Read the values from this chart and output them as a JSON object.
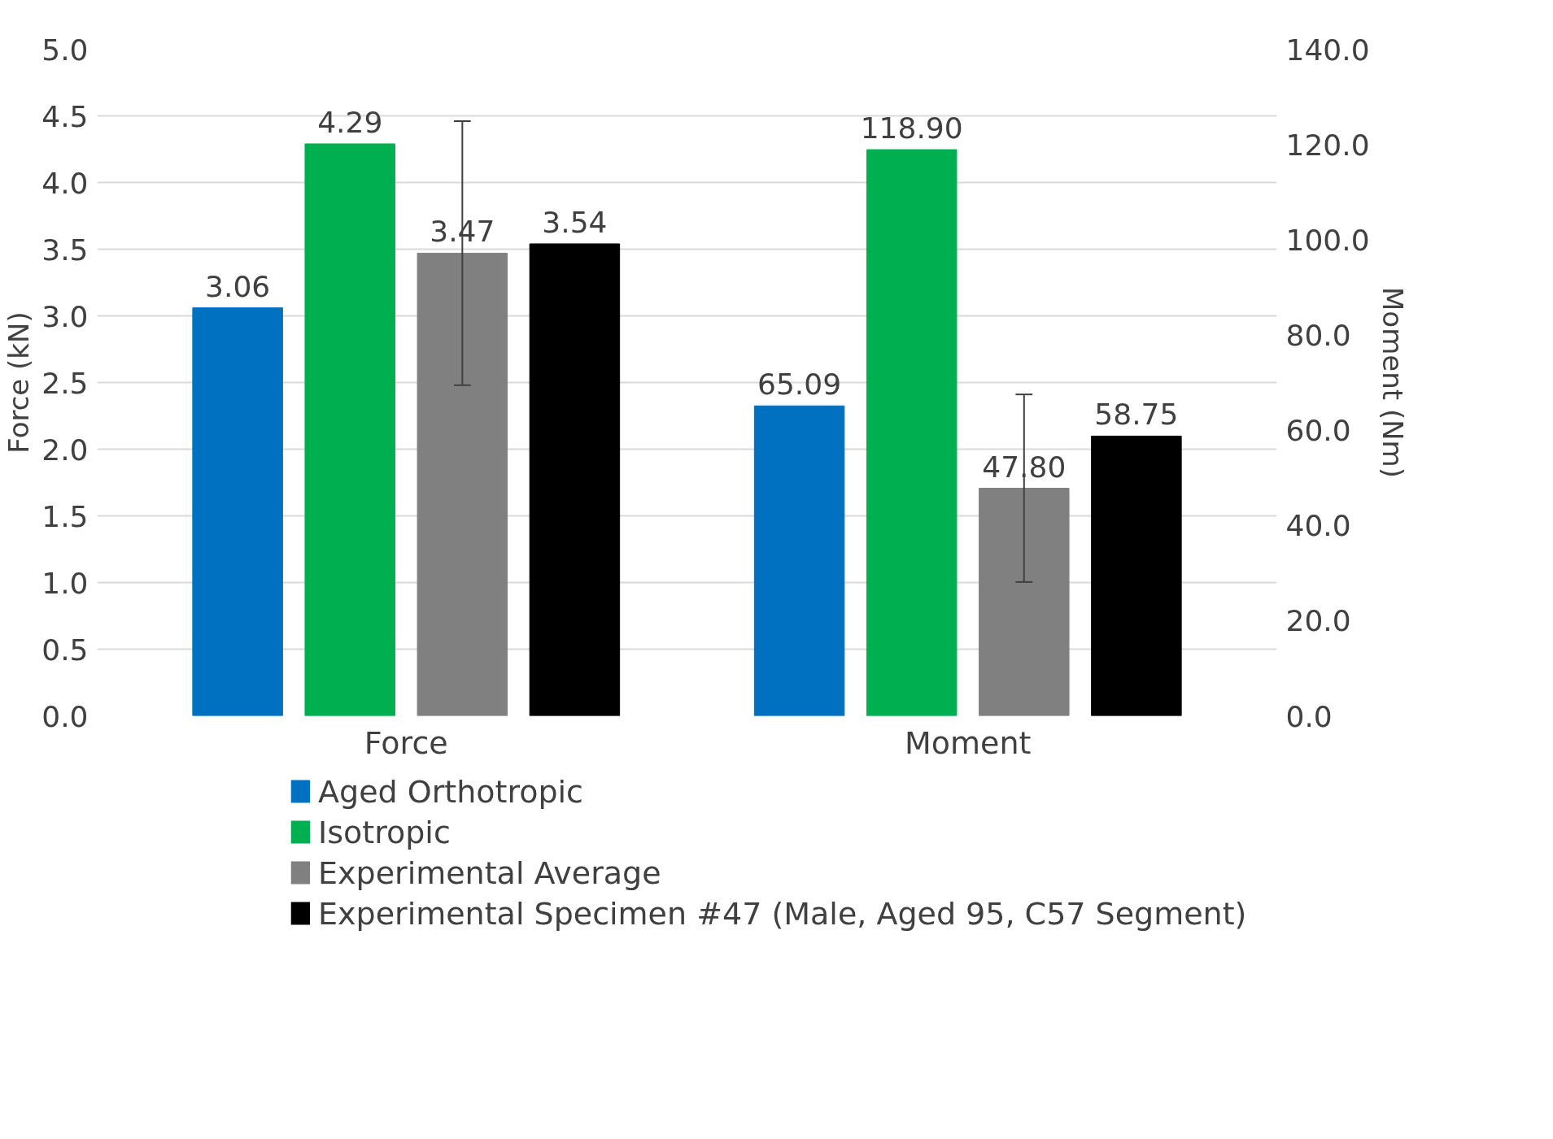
{
  "chart_data": {
    "type": "bar",
    "categories": [
      "Force",
      "Moment"
    ],
    "ylabel": "Force (kN)",
    "y2label": "Moment (Nm)",
    "ylim": [
      0,
      5
    ],
    "yticks": [
      {
        "value": 0,
        "label": "0.0"
      },
      {
        "value": 0.5,
        "label": "0.5"
      },
      {
        "value": 1,
        "label": "1.0"
      },
      {
        "value": 1.5,
        "label": "1.5"
      },
      {
        "value": 2,
        "label": "2.0"
      },
      {
        "value": 2.5,
        "label": "2.5"
      },
      {
        "value": 3,
        "label": "3.0"
      },
      {
        "value": 3.5,
        "label": "3.5"
      },
      {
        "value": 4,
        "label": "4.0"
      },
      {
        "value": 4.5,
        "label": "4.5"
      },
      {
        "value": 5,
        "label": "5.0"
      }
    ],
    "y2lim": [
      0,
      140
    ],
    "y2ticks": [
      {
        "value": 0,
        "label": "0.0"
      },
      {
        "value": 20,
        "label": "20.0"
      },
      {
        "value": 40,
        "label": "40.0"
      },
      {
        "value": 60,
        "label": "60.0"
      },
      {
        "value": 80,
        "label": "80.0"
      },
      {
        "value": 100,
        "label": "100.0"
      },
      {
        "value": 120,
        "label": "120.0"
      },
      {
        "value": 140,
        "label": "140.0"
      }
    ],
    "series": [
      {
        "name": "Aged Orthotropic",
        "color": "#0070c0",
        "values": [
          3.06,
          null
        ],
        "value_labels": [
          "3.06",
          null
        ]
      },
      {
        "name": "Isotropic",
        "color": "#00b050",
        "values": [
          4.29,
          null
        ],
        "value_labels": [
          "4.29",
          null
        ]
      },
      {
        "name": "Experimental Average",
        "color": "#808080",
        "values": [
          3.47,
          null
        ],
        "value_labels": [
          "3.47",
          null
        ],
        "errors": [
          0.99,
          null
        ]
      },
      {
        "name": "Experimental Specimen #47 (Male, Aged 95, C57 Segment)",
        "color": "#000000",
        "values": [
          3.54,
          null
        ],
        "value_labels": [
          "3.54",
          null
        ]
      },
      {
        "color": "#0070c0",
        "values": [
          null,
          65.09
        ],
        "value_labels": [
          null,
          "65.09"
        ],
        "axis": "y2"
      },
      {
        "color": "#00b050",
        "values": [
          null,
          118.9
        ],
        "value_labels": [
          null,
          "118.90"
        ],
        "axis": "y2"
      },
      {
        "color": "#808080",
        "values": [
          null,
          47.8
        ],
        "value_labels": [
          null,
          "47.80"
        ],
        "axis": "y2",
        "errors": [
          null,
          19.7
        ]
      },
      {
        "color": "#000000",
        "values": [
          null,
          58.75
        ],
        "value_labels": [
          null,
          "58.75"
        ],
        "axis": "y2"
      }
    ],
    "grid": "y",
    "legend": "bottom"
  }
}
